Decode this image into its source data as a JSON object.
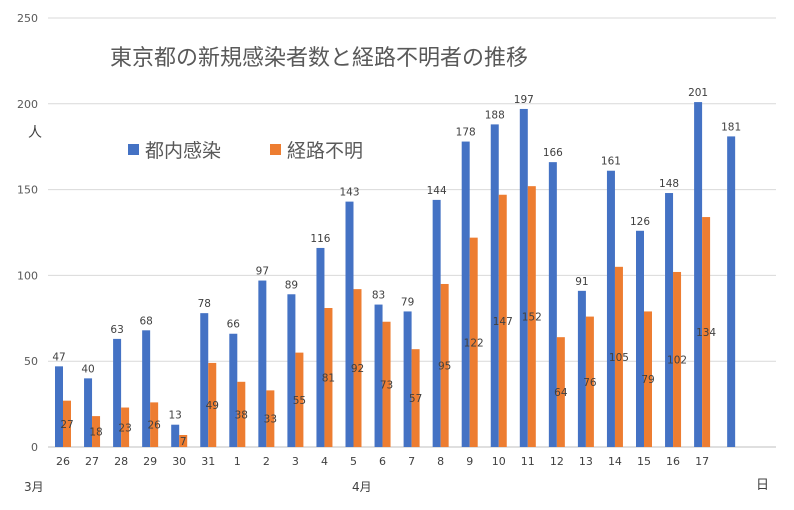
{
  "chart_data": {
    "type": "bar",
    "title": "東京都の新規感染者数と経路不明者の推移",
    "ylabel": "人",
    "xlabel": "日",
    "month_labels": [
      "3月",
      "4月"
    ],
    "ylim": [
      0,
      250
    ],
    "yticks": [
      0,
      50,
      100,
      150,
      200,
      250
    ],
    "grid": true,
    "legend_position": "top-left",
    "categories": [
      "26",
      "27",
      "28",
      "29",
      "30",
      "31",
      "1",
      "2",
      "3",
      "4",
      "5",
      "6",
      "7",
      "8",
      "9",
      "10",
      "11",
      "12",
      "13",
      "14",
      "15",
      "16",
      "17",
      ""
    ],
    "series": [
      {
        "name": "都内感染",
        "color": "#4472C4",
        "values": [
          47,
          40,
          63,
          68,
          13,
          78,
          66,
          97,
          89,
          116,
          143,
          83,
          79,
          144,
          178,
          188,
          197,
          166,
          91,
          161,
          126,
          148,
          201,
          181
        ]
      },
      {
        "name": "経路不明",
        "color": "#ED7D31",
        "values": [
          27,
          18,
          23,
          26,
          7,
          49,
          38,
          33,
          55,
          81,
          92,
          73,
          57,
          95,
          122,
          147,
          152,
          64,
          76,
          105,
          79,
          102,
          134,
          null
        ]
      }
    ]
  }
}
